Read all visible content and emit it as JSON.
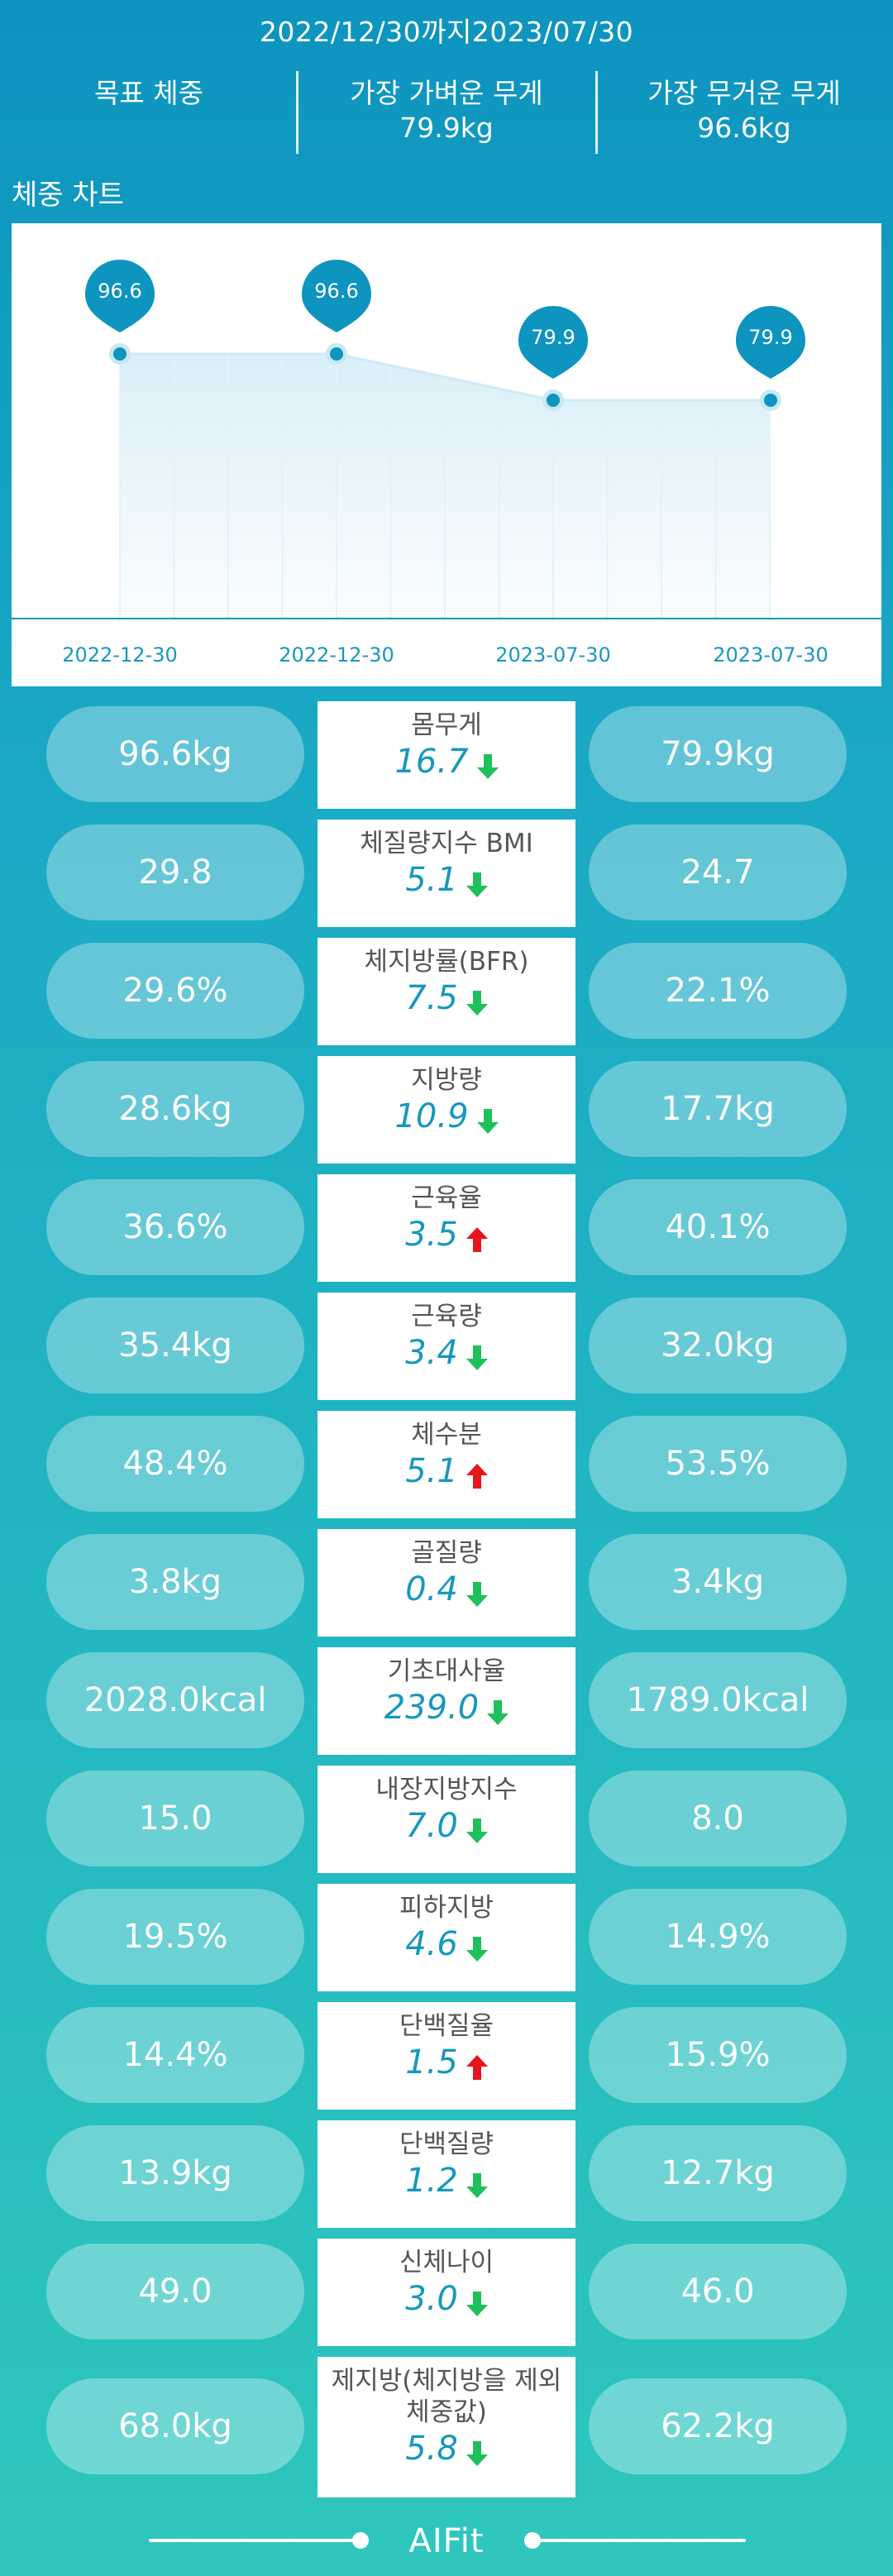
{
  "header": {
    "date_range": "2022/12/30까지2023/07/30",
    "target_weight_label": "목표 체중",
    "lightest_label": "가장 가벼운 무게",
    "lightest_value": "79.9kg",
    "heaviest_label": "가장 무거운 무게",
    "heaviest_value": "96.6kg"
  },
  "chart_title": "체중 차트",
  "chart_data": {
    "type": "area",
    "x": [
      "2022-12-30",
      "2022-12-30",
      "2023-07-30",
      "2023-07-30"
    ],
    "values": [
      96.6,
      96.6,
      79.9,
      79.9
    ],
    "data_labels": [
      "96.6",
      "96.6",
      "79.9",
      "79.9"
    ],
    "colors": {
      "line": "#cfeaf4",
      "fill": "#d8eef8",
      "marker": "#0d94bf",
      "axis": "#1698bd"
    }
  },
  "metrics": [
    {
      "label": "몸무게",
      "before": "96.6kg",
      "after": "79.9kg",
      "delta": "16.7",
      "direction": "down"
    },
    {
      "label": "체질량지수 BMI",
      "before": "29.8",
      "after": "24.7",
      "delta": "5.1",
      "direction": "down"
    },
    {
      "label": "체지방률(BFR)",
      "before": "29.6%",
      "after": "22.1%",
      "delta": "7.5",
      "direction": "down"
    },
    {
      "label": "지방량",
      "before": "28.6kg",
      "after": "17.7kg",
      "delta": "10.9",
      "direction": "down"
    },
    {
      "label": "근육율",
      "before": "36.6%",
      "after": "40.1%",
      "delta": "3.5",
      "direction": "up"
    },
    {
      "label": "근육량",
      "before": "35.4kg",
      "after": "32.0kg",
      "delta": "3.4",
      "direction": "down"
    },
    {
      "label": "체수분",
      "before": "48.4%",
      "after": "53.5%",
      "delta": "5.1",
      "direction": "up"
    },
    {
      "label": "골질량",
      "before": "3.8kg",
      "after": "3.4kg",
      "delta": "0.4",
      "direction": "down"
    },
    {
      "label": "기초대사율",
      "before": "2028.0kcal",
      "after": "1789.0kcal",
      "delta": "239.0",
      "direction": "down"
    },
    {
      "label": "내장지방지수",
      "before": "15.0",
      "after": "8.0",
      "delta": "7.0",
      "direction": "down"
    },
    {
      "label": "피하지방",
      "before": "19.5%",
      "after": "14.9%",
      "delta": "4.6",
      "direction": "down"
    },
    {
      "label": "단백질율",
      "before": "14.4%",
      "after": "15.9%",
      "delta": "1.5",
      "direction": "up"
    },
    {
      "label": "단백질량",
      "before": "13.9kg",
      "after": "12.7kg",
      "delta": "1.2",
      "direction": "down"
    },
    {
      "label": "신체나이",
      "before": "49.0",
      "after": "46.0",
      "delta": "3.0",
      "direction": "down"
    },
    {
      "label": "제지방(체지방을 제외 체중값)",
      "label_lines": [
        "제지방(체지방을 제외",
        "체중값)"
      ],
      "before": "68.0kg",
      "after": "62.2kg",
      "delta": "5.8",
      "direction": "down"
    }
  ],
  "footer": {
    "brand": "AIFit"
  },
  "colors": {
    "up_arrow": "#e8141b",
    "down_arrow": "#1ec05a",
    "delta_text": "#1698bd"
  }
}
